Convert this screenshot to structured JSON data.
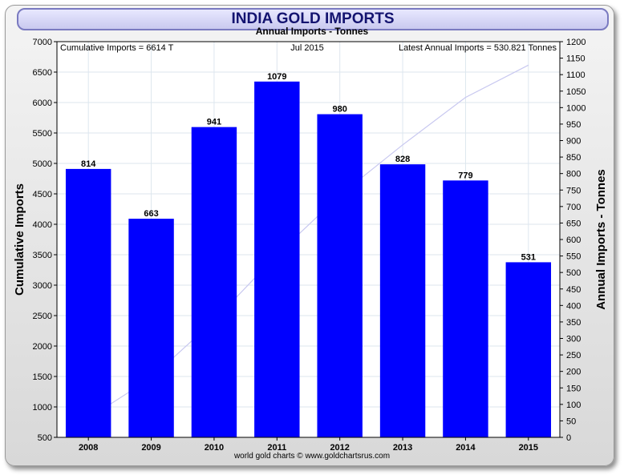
{
  "title": "INDIA GOLD IMPORTS",
  "subtitle": "Annual Imports - Tonnes",
  "header_left": "Cumulative Imports = 6614 T",
  "header_center": "Jul 2015",
  "header_right": "Latest Annual Imports = 530.821 Tonnes",
  "footer": "world gold charts © www.goldchartsrus.com",
  "colors": {
    "bars": "#0000ff",
    "cumulative_line": "#c8c8f0",
    "grid": "#dde6ee"
  },
  "chart_data": {
    "type": "bar",
    "categories": [
      "2008",
      "2009",
      "2010",
      "2011",
      "2012",
      "2013",
      "2014",
      "2015"
    ],
    "series": [
      {
        "values": [
          814,
          663,
          941,
          1079,
          980,
          828,
          779,
          531
        ]
      }
    ],
    "data_labels": [
      "814",
      "663",
      "941",
      "1079",
      "980",
      "828",
      "779",
      "531"
    ],
    "cumulative_line": {
      "x": [
        "2008",
        "2009",
        "2010",
        "2011",
        "2012",
        "2013",
        "2014",
        "2015"
      ],
      "values": [
        814,
        1477,
        2418,
        3497,
        4477,
        5305,
        6084,
        6614
      ]
    },
    "ylabel_left": "Cumulative Imports",
    "ylabel_right": "Annual Imports - Tonnes",
    "ylim_left": [
      500,
      7000
    ],
    "yticks_left": [
      "500",
      "1000",
      "1500",
      "2000",
      "2500",
      "3000",
      "3500",
      "4000",
      "4500",
      "5000",
      "5500",
      "6000",
      "6500",
      "7000"
    ],
    "ylim_right": [
      0,
      1200
    ],
    "yticks_right": [
      "0",
      "50",
      "100",
      "150",
      "200",
      "250",
      "300",
      "350",
      "400",
      "450",
      "500",
      "550",
      "600",
      "650",
      "700",
      "750",
      "800",
      "850",
      "900",
      "950",
      "1000",
      "1050",
      "1100",
      "1150",
      "1200"
    ],
    "grid": true
  }
}
